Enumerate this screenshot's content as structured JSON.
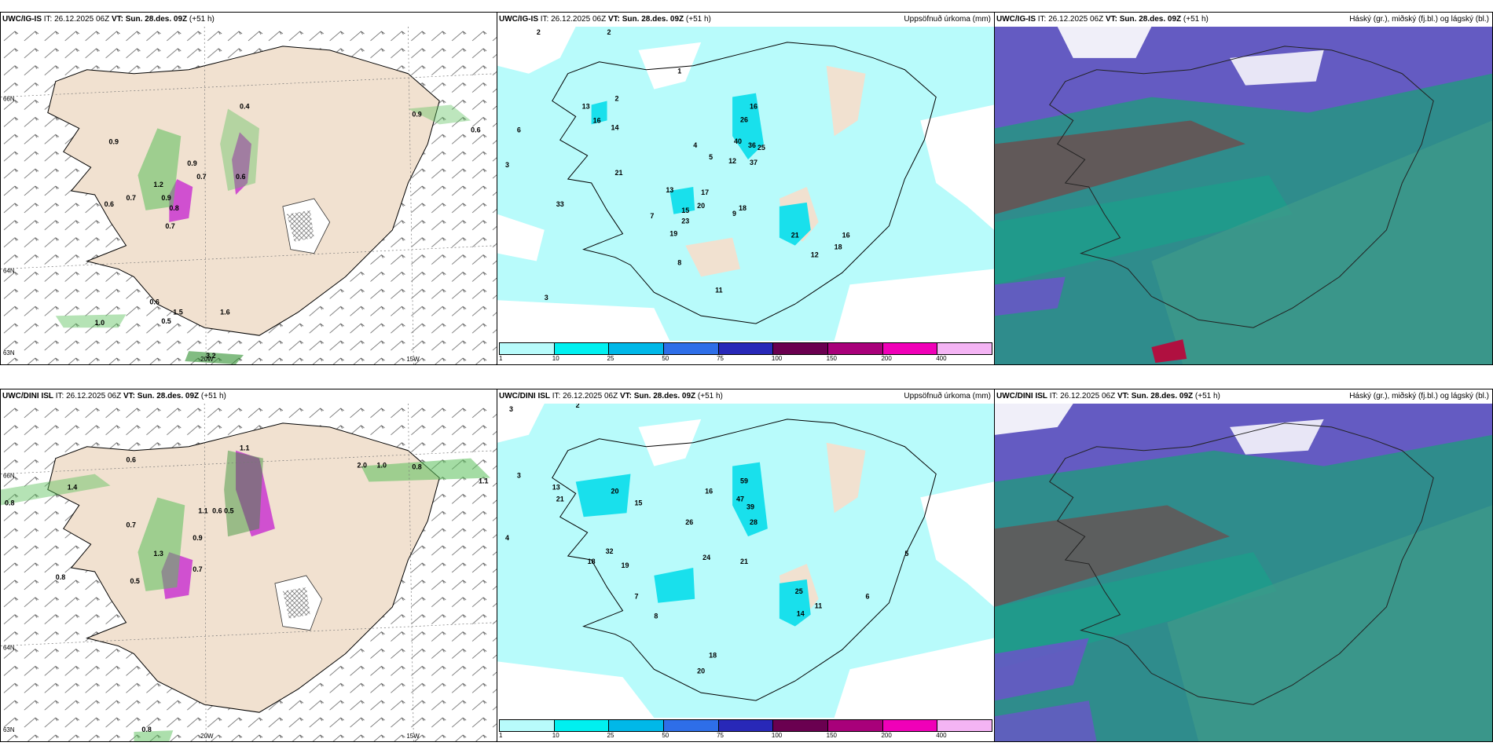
{
  "panels": [
    {
      "id": "wind-ig",
      "model": "UWC/IG-IS",
      "it": "IT: 26.12.2025 06Z",
      "vt": "VT: Sun. 28.des. 09Z",
      "lead": "(+51 h)",
      "right": "",
      "labels": [
        "0.4",
        "0.9",
        "0.6",
        "0.9",
        "0.6",
        "0.7",
        "1.2",
        "0.7",
        "0.6",
        "0.9",
        "0.8",
        "0.7",
        "0.9",
        "1.0",
        "1.5",
        "1.6",
        "3.2",
        "0.6",
        "0.5"
      ]
    },
    {
      "id": "precip-ig",
      "model": "UWC/IG-IS",
      "it": "IT: 26.12.2025 06Z",
      "vt": "VT: Sun. 28.des. 09Z",
      "lead": "(+51 h)",
      "right": "Uppsöfnuð úrkoma (mm)",
      "labels": [
        "2",
        "2",
        "3",
        "1",
        "2",
        "6",
        "13",
        "16",
        "14",
        "26",
        "16",
        "40",
        "36",
        "25",
        "37",
        "4",
        "5",
        "12",
        "21",
        "17",
        "20",
        "13",
        "18",
        "15",
        "23",
        "19",
        "33",
        "21",
        "12",
        "11",
        "18",
        "16",
        "3",
        "7",
        "9",
        "8"
      ]
    },
    {
      "id": "cloud-ig",
      "model": "UWC/IG-IS",
      "it": "IT: 26.12.2025 06Z",
      "vt": "VT: Sun. 28.des. 09Z",
      "lead": "(+51 h)",
      "right": "Háský (gr.), miðský (fj.bl.) og lágský (bl.)",
      "labels": []
    },
    {
      "id": "wind-dini",
      "model": "UWC/DINI ISL",
      "it": "IT: 26.12.2025 06Z",
      "vt": "VT: Sun. 28.des. 09Z",
      "lead": "(+51 h)",
      "right": "",
      "labels": [
        "1.1",
        "0.6",
        "1.4",
        "0.8",
        "0.7",
        "1.3",
        "0.8",
        "1.1",
        "0.6",
        "0.5",
        "0.9",
        "2.0",
        "1.0",
        "0.8",
        "1.1",
        "0.8",
        "0.7",
        "0.5"
      ]
    },
    {
      "id": "precip-dini",
      "model": "UWC/DINI ISL",
      "it": "IT: 26.12.2025 06Z",
      "vt": "VT: Sun. 28.des. 09Z",
      "lead": "(+51 h)",
      "right": "Uppsöfnuð úrkoma (mm)",
      "labels": [
        "3",
        "2",
        "3",
        "4",
        "13",
        "21",
        "20",
        "15",
        "59",
        "47",
        "39",
        "28",
        "26",
        "16",
        "18",
        "32",
        "24",
        "21",
        "25",
        "14",
        "11",
        "19",
        "20",
        "18",
        "5",
        "6",
        "7",
        "8"
      ]
    },
    {
      "id": "cloud-dini",
      "model": "UWC/DINI ISL",
      "it": "IT: 26.12.2025 06Z",
      "vt": "VT: Sun. 28.des. 09Z",
      "lead": "(+51 h)",
      "right": "Háský (gr.), miðský (fj.bl.) og lágský (bl.)",
      "labels": []
    }
  ],
  "axes": {
    "lat_top": "66N",
    "lat_mid": "64N",
    "lat_bot": "63N",
    "lon_left": "20W",
    "lon_right": "15W"
  },
  "colorbar": {
    "levels": [
      "1",
      "10",
      "25",
      "50",
      "75",
      "100",
      "150",
      "200",
      "400"
    ],
    "colors": [
      "#b8fbfb",
      "#00f0f0",
      "#00b8e8",
      "#2e6ee8",
      "#2828b8",
      "#6a0050",
      "#a8007a",
      "#f000b8",
      "#f4b4f4"
    ]
  },
  "colors": {
    "land": "#f1e1d0",
    "sea": "#ffffff",
    "precip_light": "#b8fbfb",
    "precip_mid": "#19e0ec",
    "precip_heavy": "#00b8e8",
    "snow": "#d050d0",
    "green": "#5ac05a",
    "cloud_high": "#2f8c8c",
    "cloud_mid": "#6a55c8",
    "cloud_low": "#1aa08a"
  }
}
